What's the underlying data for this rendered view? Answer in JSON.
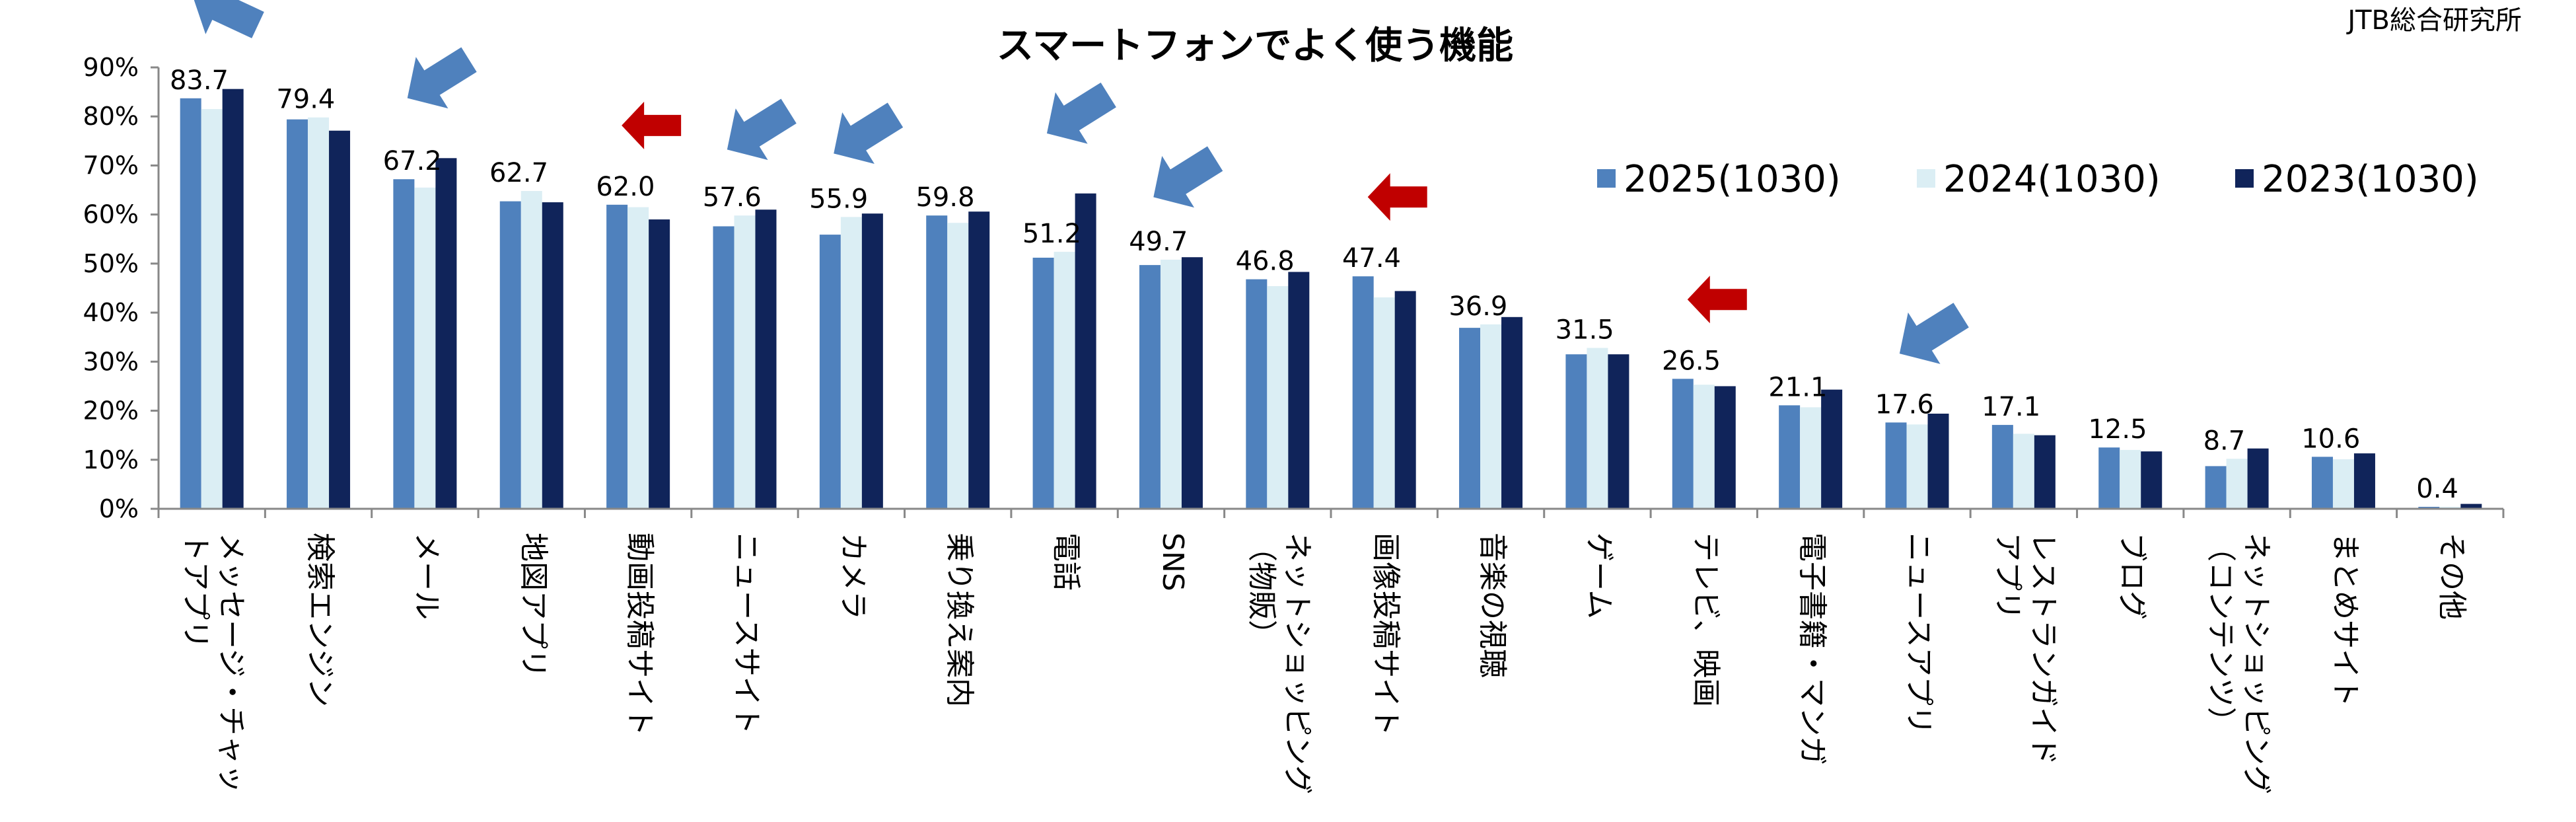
{
  "chart_data": {
    "type": "bar",
    "title": "スマートフォンでよく使う機能",
    "source": "JTB総合研究所",
    "xlabel": "",
    "ylabel": "",
    "ylim": [
      0,
      90
    ],
    "yticks": [
      "0%",
      "10%",
      "20%",
      "30%",
      "40%",
      "50%",
      "60%",
      "70%",
      "80%",
      "90%"
    ],
    "categories": [
      [
        "メッセージ・チャッ",
        "トアプリ"
      ],
      [
        "検索エンジン"
      ],
      [
        "メール"
      ],
      [
        "地図アプリ"
      ],
      [
        "動画投稿サイト"
      ],
      [
        "ニュースサイト"
      ],
      [
        "カメラ"
      ],
      [
        "乗り換え案内"
      ],
      [
        "電話"
      ],
      [
        "SNS"
      ],
      [
        "ネットショッピング",
        "（物販）"
      ],
      [
        "画像投稿サイト"
      ],
      [
        "音楽の視聴"
      ],
      [
        "ゲーム"
      ],
      [
        "テレビ、映画"
      ],
      [
        "電子書籍・マンガ"
      ],
      [
        "ニュースアプリ"
      ],
      [
        "レストランガイド",
        "アプリ"
      ],
      [
        "ブログ"
      ],
      [
        "ネットショッピング",
        "（コンテンツ）"
      ],
      [
        "まとめサイト"
      ],
      [
        "その他"
      ]
    ],
    "series": [
      {
        "name": "2025(1030)",
        "color": "#4f81bd",
        "values": [
          83.7,
          79.4,
          67.2,
          62.7,
          62.0,
          57.6,
          55.9,
          59.8,
          51.2,
          49.7,
          46.8,
          47.4,
          36.9,
          31.5,
          26.5,
          21.1,
          17.6,
          17.1,
          12.5,
          8.7,
          10.6,
          0.4
        ]
      },
      {
        "name": "2024(1030)",
        "color": "#dbeef4",
        "values": [
          81.5,
          79.8,
          65.5,
          64.8,
          61.5,
          59.8,
          59.5,
          58.3,
          52.4,
          50.8,
          45.4,
          43.1,
          37.6,
          32.8,
          25.3,
          20.7,
          17.2,
          15.3,
          12.0,
          10.2,
          10.1,
          0.4
        ]
      },
      {
        "name": "2023(1030)",
        "color": "#10245a",
        "values": [
          85.6,
          77.1,
          71.5,
          62.5,
          59.0,
          61.0,
          60.2,
          60.6,
          64.3,
          51.3,
          48.3,
          44.4,
          39.1,
          31.5,
          25.0,
          24.3,
          19.4,
          15.0,
          11.7,
          12.3,
          11.3,
          1.0
        ]
      }
    ],
    "data_labels": [
      "83.7",
      "79.4",
      "67.2",
      "62.7",
      "62.0",
      "57.6",
      "55.9",
      "59.8",
      "51.2",
      "49.7",
      "46.8",
      "47.4",
      "36.9",
      "31.5",
      "26.5",
      "21.1",
      "17.6",
      "17.1",
      "12.5",
      "8.7",
      "10.6",
      "0.4"
    ],
    "legend": {
      "placement": "top-right"
    },
    "grid": false,
    "annotations": [
      {
        "category_index": 0,
        "type": "arrow",
        "direction": "up-left",
        "color": "#4f81bd"
      },
      {
        "category_index": 2,
        "type": "arrow",
        "direction": "down-left",
        "color": "#4f81bd"
      },
      {
        "category_index": 4,
        "type": "arrow",
        "direction": "left",
        "color": "#c00000"
      },
      {
        "category_index": 5,
        "type": "arrow",
        "direction": "down-left",
        "color": "#4f81bd"
      },
      {
        "category_index": 6,
        "type": "arrow",
        "direction": "down-left",
        "color": "#4f81bd"
      },
      {
        "category_index": 8,
        "type": "arrow",
        "direction": "down-left",
        "color": "#4f81bd"
      },
      {
        "category_index": 9,
        "type": "arrow",
        "direction": "down-left",
        "color": "#4f81bd"
      },
      {
        "category_index": 11,
        "type": "arrow",
        "direction": "left",
        "color": "#c00000"
      },
      {
        "category_index": 14,
        "type": "arrow",
        "direction": "left",
        "color": "#c00000"
      },
      {
        "category_index": 16,
        "type": "arrow",
        "direction": "down-left",
        "color": "#4f81bd"
      }
    ]
  }
}
